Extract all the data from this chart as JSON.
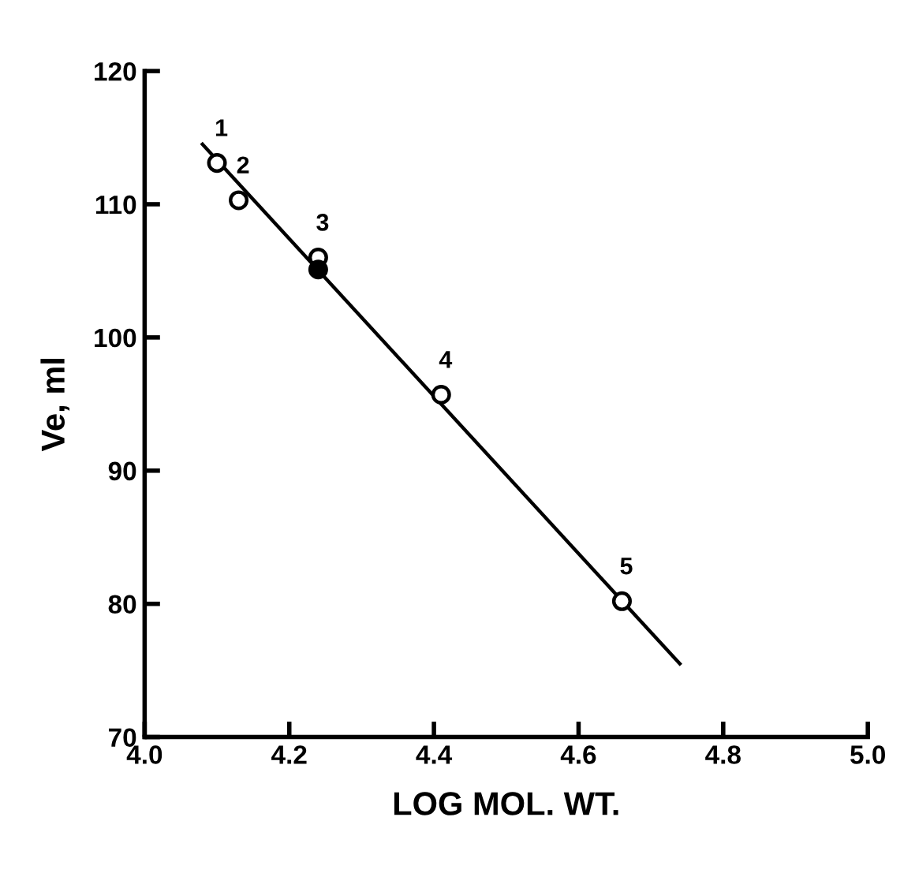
{
  "chart_data": {
    "type": "scatter",
    "xlabel": "LOG MOL. WT.",
    "ylabel": "Ve, ml",
    "series": [
      {
        "type": "line",
        "color": "#000000",
        "x": [
          4.08,
          4.74
        ],
        "values": [
          114.5,
          75.5
        ],
        "marker": "none",
        "line_style": "solid"
      },
      {
        "color": "#ffffff",
        "x": [
          4.1,
          4.13,
          4.24,
          4.41,
          4.66
        ],
        "values": [
          113.1,
          110.3,
          106.0,
          95.7,
          80.2
        ],
        "marker": "circle"
      },
      {
        "color": "#000000",
        "x": [
          4.24
        ],
        "values": [
          105.1
        ],
        "marker": "circle"
      }
    ],
    "annotations": [
      {
        "text": "1",
        "x": 4.1,
        "y": 113.1
      },
      {
        "text": "2",
        "x": 4.13,
        "y": 110.3
      },
      {
        "text": "3",
        "x": 4.24,
        "y": 106.0
      },
      {
        "text": "4",
        "x": 4.41,
        "y": 95.7
      },
      {
        "text": "5",
        "x": 4.66,
        "y": 80.2
      }
    ],
    "xlim": [
      4.0,
      5.0
    ],
    "ylim": [
      70,
      120
    ],
    "xticks": [
      {
        "value": 4.0,
        "label": "4.0"
      },
      {
        "value": 4.2,
        "label": "4.2"
      },
      {
        "value": 4.4,
        "label": "4.4"
      },
      {
        "value": 4.6,
        "label": "4.6"
      },
      {
        "value": 4.8,
        "label": "4.8"
      },
      {
        "value": 5.0,
        "label": "5.0"
      }
    ],
    "yticks": [
      70,
      80,
      90,
      100,
      110,
      120
    ],
    "grid": false,
    "legend": false
  }
}
